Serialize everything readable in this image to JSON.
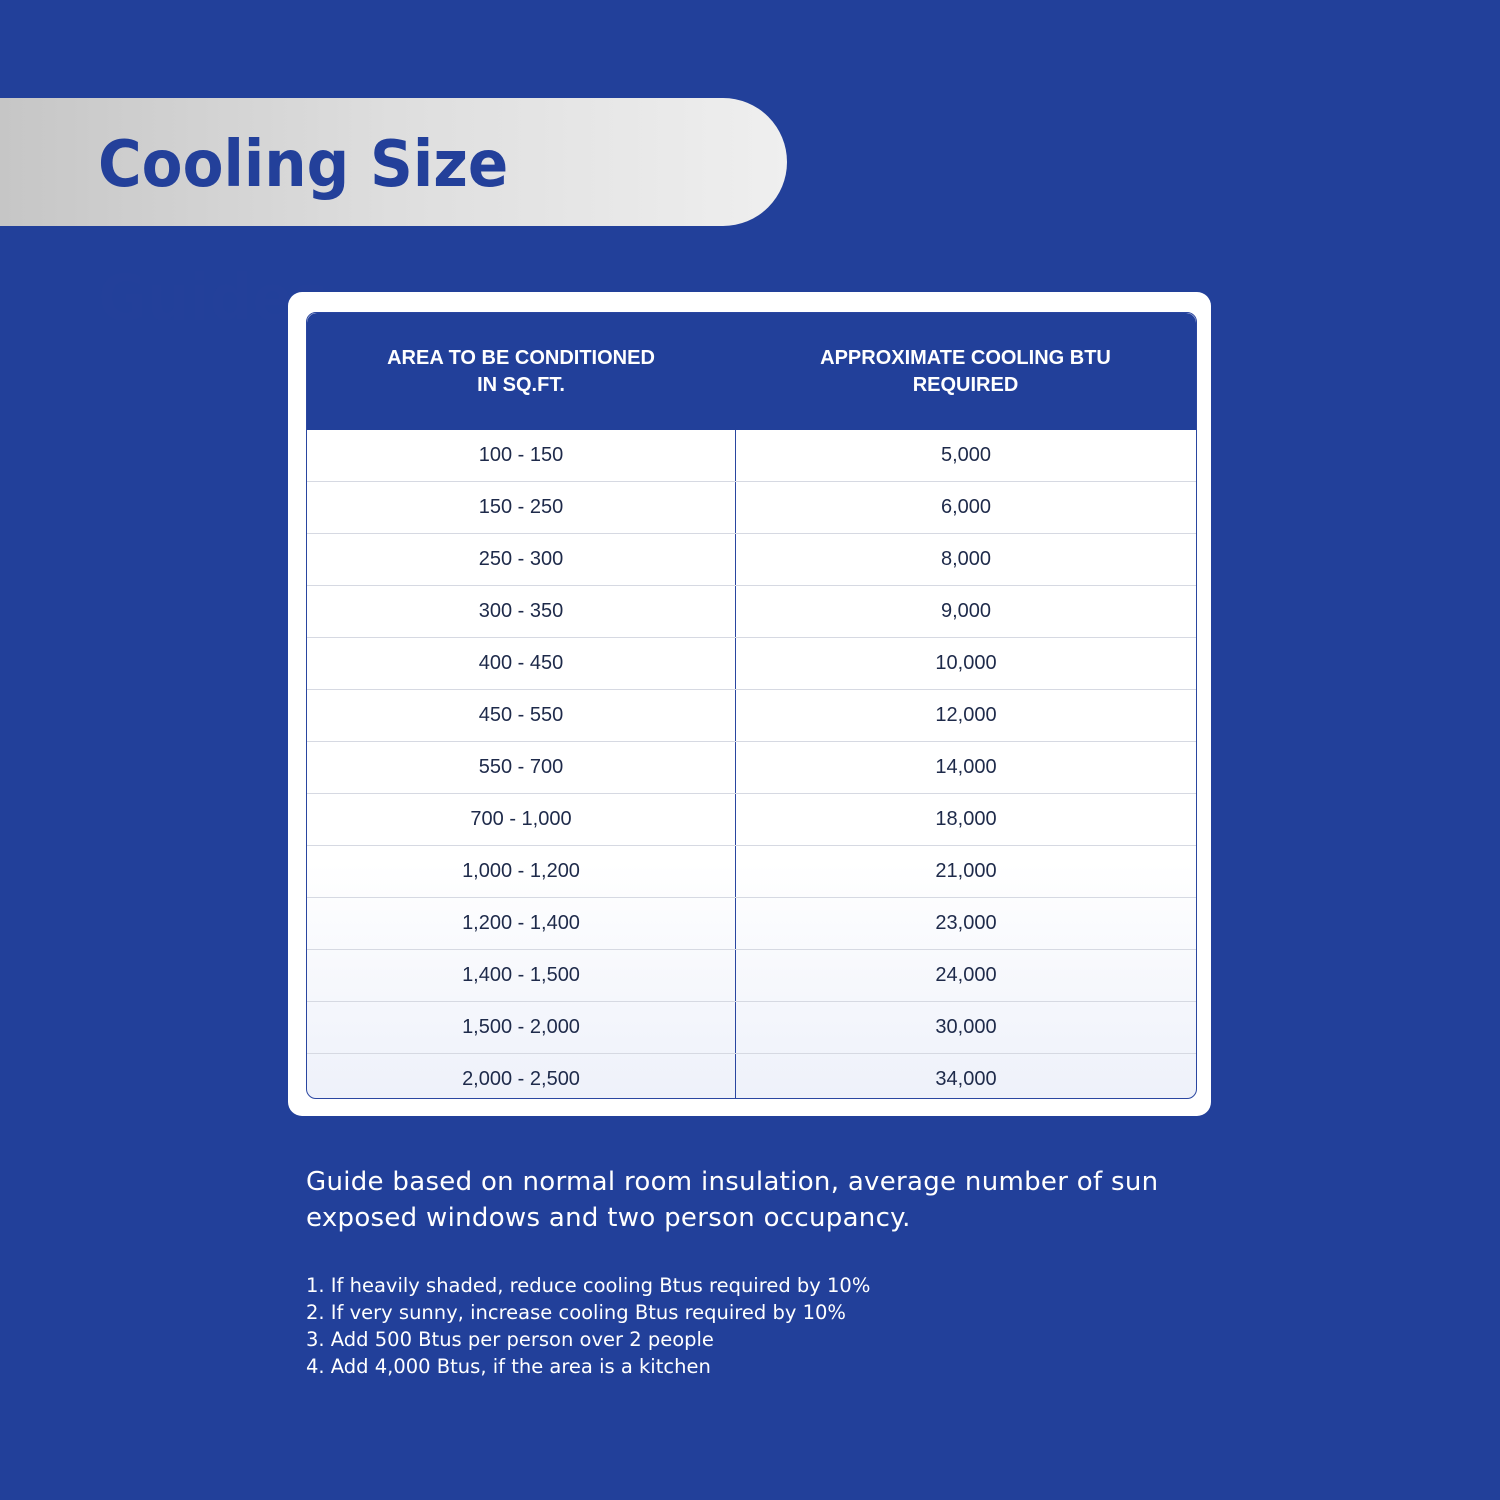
{
  "title": "Cooling Size Guides",
  "table": {
    "headers": [
      "AREA TO BE CONDITIONED\nIN SQ.FT.",
      "APPROXIMATE COOLING BTU\nREQUIRED"
    ],
    "rows": [
      [
        "100 - 150",
        "5,000"
      ],
      [
        "150 - 250",
        "6,000"
      ],
      [
        "250 - 300",
        "8,000"
      ],
      [
        "300 - 350",
        "9,000"
      ],
      [
        "400 - 450",
        "10,000"
      ],
      [
        "450 - 550",
        "12,000"
      ],
      [
        "550 - 700",
        "14,000"
      ],
      [
        "700 - 1,000",
        "18,000"
      ],
      [
        "1,000 - 1,200",
        "21,000"
      ],
      [
        "1,200 - 1,400",
        "23,000"
      ],
      [
        "1,400 - 1,500",
        "24,000"
      ],
      [
        "1,500 - 2,000",
        "30,000"
      ],
      [
        "2,000 - 2,500",
        "34,000"
      ]
    ]
  },
  "note": "Guide based on normal room insulation, average number of sun exposed windows and two person occupancy.",
  "tips": [
    "1.  If heavily shaded, reduce cooling Btus required by 10%",
    "2. If very sunny, increase cooling Btus required by 10%",
    "3. Add 500 Btus per person over 2 people",
    "4. Add 4,000 Btus, if the area is a kitchen"
  ],
  "colors": {
    "background": "#22409a",
    "header": "#22409a",
    "title_text": "#23409a"
  }
}
